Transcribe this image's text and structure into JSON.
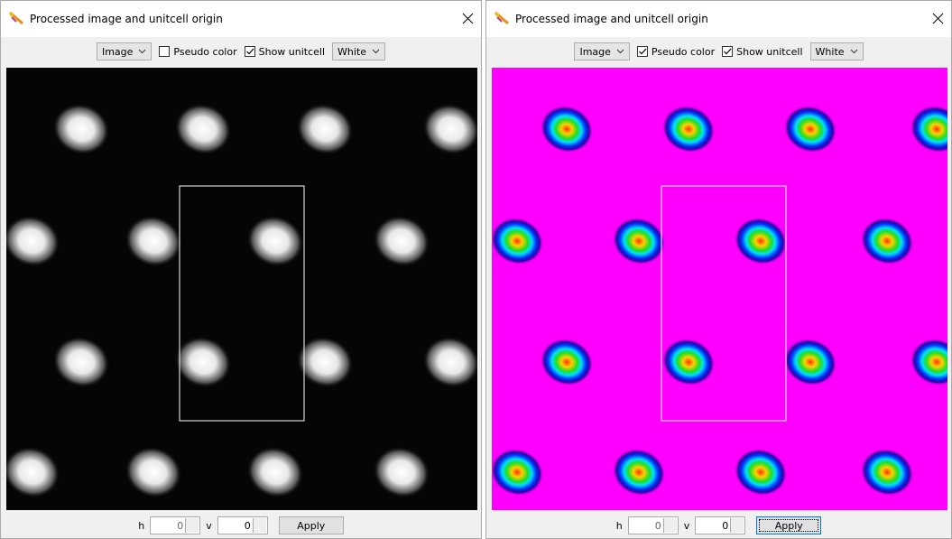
{
  "windows": [
    {
      "title": "Processed image and unitcell origin",
      "toolbar": {
        "mode": "Image",
        "pseudo_color": {
          "label": "Pseudo color",
          "checked": false
        },
        "show_unitcell": {
          "label": "Show unitcell",
          "checked": true
        },
        "unitcell_color": "White"
      },
      "footer": {
        "h_label": "h",
        "h_value": 0,
        "v_label": "v",
        "v_value": 0,
        "apply": "Apply"
      }
    },
    {
      "title": "Processed image and unitcell origin",
      "toolbar": {
        "mode": "Image",
        "pseudo_color": {
          "label": "Pseudo color",
          "checked": true
        },
        "show_unitcell": {
          "label": "Show unitcell",
          "checked": true
        },
        "unitcell_color": "White"
      },
      "footer": {
        "h_label": "h",
        "h_value": 0,
        "v_label": "v",
        "v_value": 0,
        "apply": "Apply"
      }
    }
  ]
}
